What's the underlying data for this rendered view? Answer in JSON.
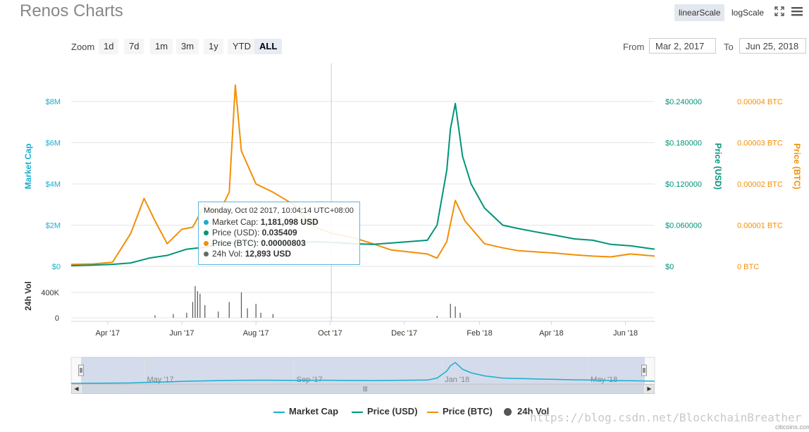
{
  "header": {
    "title": "Renos Charts",
    "scale_buttons": [
      "linearScale",
      "logScale"
    ],
    "active_scale": "linearScale",
    "icons": [
      "fullscreen-icon",
      "menu-icon"
    ]
  },
  "zoom": {
    "label": "Zoom",
    "options": [
      "1d",
      "7d",
      "1m",
      "3m",
      "1y",
      "YTD",
      "ALL"
    ],
    "active": "ALL"
  },
  "range": {
    "from_label": "From",
    "from_value": "Mar 2, 2017",
    "to_label": "To",
    "to_value": "Jun 25, 2018"
  },
  "tooltip": {
    "date": "Monday, Oct 02 2017, 10:04:14 UTC+08:00",
    "rows": [
      {
        "label": "Market Cap: ",
        "value": "1,181,098 USD",
        "color": "#1aadce"
      },
      {
        "label": "Price (USD): ",
        "value": "0.035409",
        "color": "#009478"
      },
      {
        "label": "Price (BTC): ",
        "value": "0.00000803",
        "color": "#f28f05"
      },
      {
        "label": "24h Vol: ",
        "value": "12,893 USD",
        "color": "#666666"
      }
    ]
  },
  "chart_data": {
    "type": "line",
    "x_axis": {
      "type": "date",
      "range": [
        "2017-03-02",
        "2018-06-25"
      ],
      "ticks": [
        "Apr '17",
        "Jun '17",
        "Aug '17",
        "Oct '17",
        "Dec '17",
        "Feb '18",
        "Apr '18",
        "Jun '18"
      ]
    },
    "y_axes": [
      {
        "label": "Market Cap",
        "ticks": [
          "$0",
          "$2M",
          "$4M",
          "$6M",
          "$8M"
        ],
        "color": "#1aadce"
      },
      {
        "label": "Price (USD)",
        "ticks": [
          "$0",
          "$0.060000",
          "$0.120000",
          "$0.180000",
          "$0.240000"
        ],
        "color": "#009478"
      },
      {
        "label": "Price (BTC)",
        "ticks": [
          "0 BTC",
          "0.00001 BTC",
          "0.00002 BTC",
          "0.00003 BTC",
          "0.00004 BTC"
        ],
        "color": "#f28f05"
      },
      {
        "label": "24h Vol",
        "ticks": [
          "0",
          "400K"
        ],
        "color": "#333333"
      }
    ],
    "series": [
      {
        "name": "Price (USD)",
        "color": "#009478",
        "x": [
          "2017-03-02",
          "2017-03-20",
          "2017-04-05",
          "2017-04-20",
          "2017-05-05",
          "2017-05-20",
          "2017-06-05",
          "2017-06-20",
          "2017-07-05",
          "2017-07-20",
          "2017-08-05",
          "2017-08-20",
          "2017-09-05",
          "2017-09-20",
          "2017-10-02",
          "2017-10-20",
          "2017-11-05",
          "2017-11-20",
          "2017-12-05",
          "2017-12-20",
          "2017-12-28",
          "2018-01-05",
          "2018-01-08",
          "2018-01-12",
          "2018-01-18",
          "2018-01-25",
          "2018-02-05",
          "2018-02-20",
          "2018-03-05",
          "2018-03-20",
          "2018-04-05",
          "2018-04-20",
          "2018-05-05",
          "2018-05-20",
          "2018-06-05",
          "2018-06-25"
        ],
        "y": [
          0.001,
          0.002,
          0.003,
          0.005,
          0.012,
          0.016,
          0.025,
          0.028,
          0.033,
          0.035,
          0.036,
          0.035,
          0.034,
          0.036,
          0.035,
          0.033,
          0.032,
          0.034,
          0.036,
          0.038,
          0.06,
          0.14,
          0.2,
          0.237,
          0.16,
          0.12,
          0.085,
          0.06,
          0.055,
          0.05,
          0.045,
          0.04,
          0.038,
          0.032,
          0.03,
          0.025
        ]
      },
      {
        "name": "Price (BTC)",
        "color": "#f28f05",
        "x": [
          "2017-03-02",
          "2017-03-20",
          "2017-04-05",
          "2017-04-20",
          "2017-05-01",
          "2017-05-10",
          "2017-05-20",
          "2017-06-01",
          "2017-06-10",
          "2017-06-20",
          "2017-07-01",
          "2017-07-10",
          "2017-07-15",
          "2017-07-20",
          "2017-08-01",
          "2017-08-15",
          "2017-09-01",
          "2017-09-15",
          "2017-10-02",
          "2017-10-20",
          "2017-11-05",
          "2017-11-20",
          "2017-12-05",
          "2017-12-20",
          "2017-12-28",
          "2018-01-05",
          "2018-01-12",
          "2018-01-20",
          "2018-02-05",
          "2018-02-20",
          "2018-03-05",
          "2018-03-20",
          "2018-04-05",
          "2018-04-20",
          "2018-05-05",
          "2018-05-20",
          "2018-06-05",
          "2018-06-25"
        ],
        "y": [
          5e-07,
          6e-07,
          1e-06,
          8e-06,
          1.65e-05,
          1.1e-05,
          5.5e-06,
          9e-06,
          9.5e-06,
          1.5e-05,
          1.25e-05,
          1.8e-05,
          4.4e-05,
          2.8e-05,
          2e-05,
          1.8e-05,
          1.5e-05,
          1e-05,
          8.03e-06,
          7e-06,
          5.5e-06,
          4e-06,
          3.5e-06,
          3e-06,
          2e-06,
          6e-06,
          1.6e-05,
          1.1e-05,
          5.5e-06,
          4.5e-06,
          3.8e-06,
          3.5e-06,
          3.2e-06,
          2.8e-06,
          2.5e-06,
          2.3e-06,
          3e-06,
          2.5e-06
        ]
      },
      {
        "name": "Market Cap",
        "color": "#1aadce",
        "x": [
          "2017-03-02",
          "2018-06-25"
        ],
        "y": [
          null,
          null
        ]
      },
      {
        "name": "24h Vol",
        "color": "#555555",
        "type": "column",
        "x": [
          "2017-05-10",
          "2017-05-25",
          "2017-06-05",
          "2017-06-10",
          "2017-06-12",
          "2017-06-14",
          "2017-06-16",
          "2017-06-20",
          "2017-07-01",
          "2017-07-10",
          "2017-07-20",
          "2017-07-25",
          "2017-08-01",
          "2017-08-05",
          "2017-08-15",
          "2017-10-02",
          "2017-12-28",
          "2018-01-08",
          "2018-01-12",
          "2018-01-16"
        ],
        "y": [
          40000,
          60000,
          80000,
          250000,
          500000,
          420000,
          380000,
          200000,
          100000,
          250000,
          400000,
          150000,
          220000,
          80000,
          60000,
          12893,
          30000,
          220000,
          180000,
          80000
        ]
      }
    ],
    "navigator_ticks": [
      "May '17",
      "Sep '17",
      "Jan '18",
      "May '18"
    ],
    "legend": [
      "Market Cap",
      "Price (USD)",
      "Price (BTC)",
      "24h Vol"
    ],
    "legend_placement": "bottom",
    "grid": true
  },
  "watermark": "https://blog.csdn.net/BlockchainBreather",
  "credit": "citicoins.com"
}
